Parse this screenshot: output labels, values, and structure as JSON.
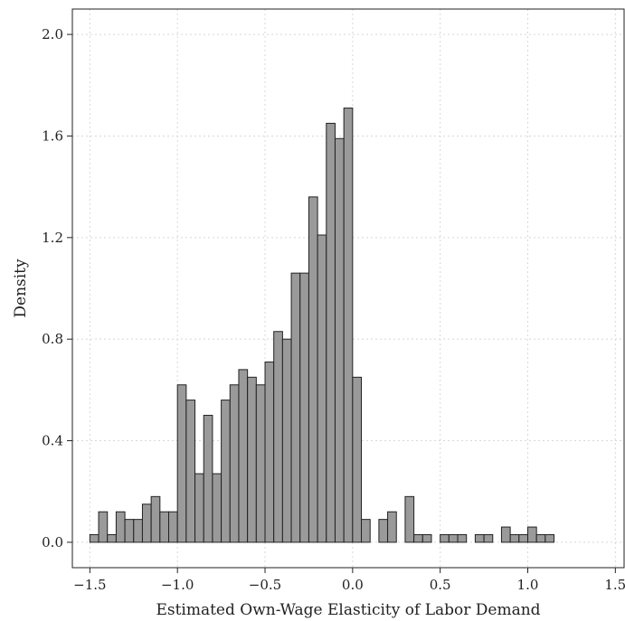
{
  "chart_data": {
    "type": "bar",
    "subtype": "histogram",
    "xlabel": "Estimated Own-Wage Elasticity of Labor Demand",
    "ylabel": "Density",
    "xlim": [
      -1.6,
      1.55
    ],
    "ylim": [
      -0.1,
      2.1
    ],
    "xticks": [
      -1.5,
      -1.0,
      -0.5,
      0.0,
      0.5,
      1.0,
      1.5
    ],
    "xtick_labels": [
      "−1.5",
      "−1.0",
      "−0.5",
      "0.0",
      "0.5",
      "1.0",
      "1.5"
    ],
    "yticks": [
      0.0,
      0.4,
      0.8,
      1.2,
      1.6,
      2.0
    ],
    "ytick_labels": [
      "0.0",
      "0.4",
      "0.8",
      "1.2",
      "1.6",
      "2.0"
    ],
    "grid": true,
    "bin_width": 0.05,
    "bins": [
      {
        "x": -1.5,
        "value": 0.03
      },
      {
        "x": -1.45,
        "value": 0.12
      },
      {
        "x": -1.4,
        "value": 0.03
      },
      {
        "x": -1.35,
        "value": 0.12
      },
      {
        "x": -1.3,
        "value": 0.09
      },
      {
        "x": -1.25,
        "value": 0.09
      },
      {
        "x": -1.2,
        "value": 0.15
      },
      {
        "x": -1.15,
        "value": 0.18
      },
      {
        "x": -1.1,
        "value": 0.12
      },
      {
        "x": -1.05,
        "value": 0.12
      },
      {
        "x": -1.0,
        "value": 0.62
      },
      {
        "x": -0.95,
        "value": 0.56
      },
      {
        "x": -0.9,
        "value": 0.27
      },
      {
        "x": -0.85,
        "value": 0.5
      },
      {
        "x": -0.8,
        "value": 0.27
      },
      {
        "x": -0.75,
        "value": 0.56
      },
      {
        "x": -0.7,
        "value": 0.62
      },
      {
        "x": -0.65,
        "value": 0.68
      },
      {
        "x": -0.6,
        "value": 0.65
      },
      {
        "x": -0.55,
        "value": 0.62
      },
      {
        "x": -0.5,
        "value": 0.71
      },
      {
        "x": -0.45,
        "value": 0.83
      },
      {
        "x": -0.4,
        "value": 0.8
      },
      {
        "x": -0.35,
        "value": 1.06
      },
      {
        "x": -0.3,
        "value": 1.06
      },
      {
        "x": -0.25,
        "value": 1.36
      },
      {
        "x": -0.2,
        "value": 1.21
      },
      {
        "x": -0.15,
        "value": 1.65
      },
      {
        "x": -0.1,
        "value": 1.59
      },
      {
        "x": -0.05,
        "value": 1.71
      },
      {
        "x": 0.0,
        "value": 0.65
      },
      {
        "x": 0.05,
        "value": 0.09
      },
      {
        "x": 0.15,
        "value": 0.09
      },
      {
        "x": 0.2,
        "value": 0.12
      },
      {
        "x": 0.3,
        "value": 0.18
      },
      {
        "x": 0.35,
        "value": 0.03
      },
      {
        "x": 0.4,
        "value": 0.03
      },
      {
        "x": 0.5,
        "value": 0.03
      },
      {
        "x": 0.55,
        "value": 0.03
      },
      {
        "x": 0.6,
        "value": 0.03
      },
      {
        "x": 0.7,
        "value": 0.03
      },
      {
        "x": 0.75,
        "value": 0.03
      },
      {
        "x": 0.85,
        "value": 0.06
      },
      {
        "x": 0.9,
        "value": 0.03
      },
      {
        "x": 0.95,
        "value": 0.03
      },
      {
        "x": 1.0,
        "value": 0.06
      },
      {
        "x": 1.05,
        "value": 0.03
      },
      {
        "x": 1.1,
        "value": 0.03
      }
    ],
    "bar_color": "#9a9a9a",
    "edge_color": "#222222"
  }
}
